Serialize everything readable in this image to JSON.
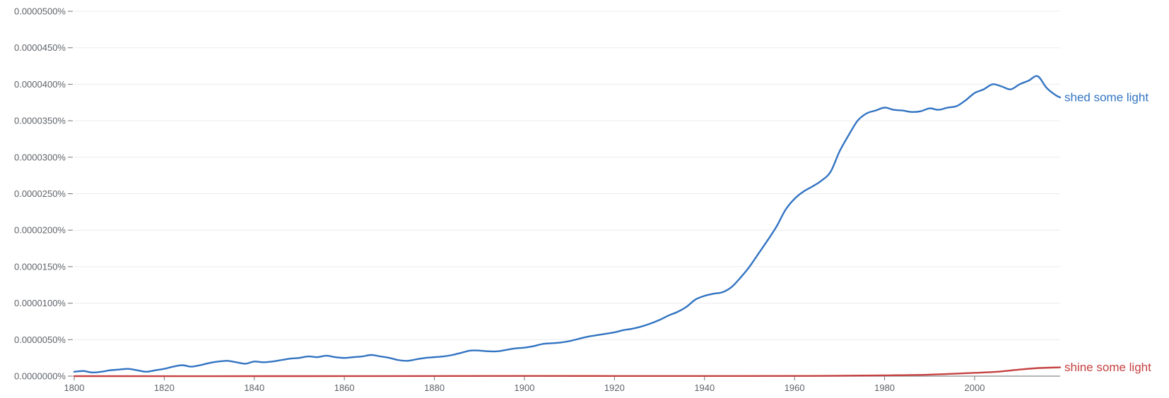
{
  "chart_data": {
    "type": "line",
    "title": "",
    "xlabel": "",
    "ylabel": "",
    "xlim": [
      1800,
      2019
    ],
    "ylim": [
      0,
      5e-05
    ],
    "grid": true,
    "legend": "inline-right",
    "x_ticks": [
      1800,
      1820,
      1840,
      1860,
      1880,
      1900,
      1920,
      1940,
      1960,
      1980,
      2000
    ],
    "x_tick_labels": [
      "1800",
      "1820",
      "1840",
      "1860",
      "1880",
      "1900",
      "1920",
      "1940",
      "1960",
      "1980",
      "2000"
    ],
    "y_ticks": [
      0,
      5e-06,
      1e-05,
      1.5e-05,
      2e-05,
      2.5e-05,
      3e-05,
      3.5e-05,
      4e-05,
      4.5e-05,
      5e-05
    ],
    "y_tick_labels": [
      "0.0000000%",
      "0.0000050%",
      "0.0000100%",
      "0.0000150%",
      "0.0000200%",
      "0.0000250%",
      "0.0000300%",
      "0.0000350%",
      "0.0000400%",
      "0.0000450%",
      "0.0000500%"
    ],
    "series": [
      {
        "name": "shed some light",
        "color": "#3274c2",
        "points": [
          [
            1800,
            6e-07
          ],
          [
            1802,
            7e-07
          ],
          [
            1804,
            5e-07
          ],
          [
            1806,
            6e-07
          ],
          [
            1808,
            8e-07
          ],
          [
            1810,
            9e-07
          ],
          [
            1812,
            1e-06
          ],
          [
            1814,
            8e-07
          ],
          [
            1816,
            6e-07
          ],
          [
            1818,
            8e-07
          ],
          [
            1820,
            1e-06
          ],
          [
            1822,
            1.3e-06
          ],
          [
            1824,
            1.5e-06
          ],
          [
            1826,
            1.3e-06
          ],
          [
            1828,
            1.5e-06
          ],
          [
            1830,
            1.8e-06
          ],
          [
            1832,
            2e-06
          ],
          [
            1834,
            2.1e-06
          ],
          [
            1836,
            1.9e-06
          ],
          [
            1838,
            1.7e-06
          ],
          [
            1840,
            2e-06
          ],
          [
            1842,
            1.9e-06
          ],
          [
            1844,
            2e-06
          ],
          [
            1846,
            2.2e-06
          ],
          [
            1848,
            2.4e-06
          ],
          [
            1850,
            2.5e-06
          ],
          [
            1852,
            2.7e-06
          ],
          [
            1854,
            2.6e-06
          ],
          [
            1856,
            2.8e-06
          ],
          [
            1858,
            2.6e-06
          ],
          [
            1860,
            2.5e-06
          ],
          [
            1862,
            2.6e-06
          ],
          [
            1864,
            2.7e-06
          ],
          [
            1866,
            2.9e-06
          ],
          [
            1868,
            2.7e-06
          ],
          [
            1870,
            2.5e-06
          ],
          [
            1872,
            2.2e-06
          ],
          [
            1874,
            2.1e-06
          ],
          [
            1876,
            2.3e-06
          ],
          [
            1878,
            2.5e-06
          ],
          [
            1880,
            2.6e-06
          ],
          [
            1882,
            2.7e-06
          ],
          [
            1884,
            2.9e-06
          ],
          [
            1886,
            3.2e-06
          ],
          [
            1888,
            3.5e-06
          ],
          [
            1890,
            3.5e-06
          ],
          [
            1892,
            3.4e-06
          ],
          [
            1894,
            3.4e-06
          ],
          [
            1896,
            3.6e-06
          ],
          [
            1898,
            3.8e-06
          ],
          [
            1900,
            3.9e-06
          ],
          [
            1902,
            4.1e-06
          ],
          [
            1904,
            4.4e-06
          ],
          [
            1906,
            4.5e-06
          ],
          [
            1908,
            4.6e-06
          ],
          [
            1910,
            4.8e-06
          ],
          [
            1912,
            5.1e-06
          ],
          [
            1914,
            5.4e-06
          ],
          [
            1916,
            5.6e-06
          ],
          [
            1918,
            5.8e-06
          ],
          [
            1920,
            6e-06
          ],
          [
            1922,
            6.3e-06
          ],
          [
            1924,
            6.5e-06
          ],
          [
            1926,
            6.8e-06
          ],
          [
            1928,
            7.2e-06
          ],
          [
            1930,
            7.7e-06
          ],
          [
            1932,
            8.3e-06
          ],
          [
            1934,
            8.8e-06
          ],
          [
            1936,
            9.5e-06
          ],
          [
            1938,
            1.05e-05
          ],
          [
            1940,
            1.1e-05
          ],
          [
            1942,
            1.13e-05
          ],
          [
            1944,
            1.15e-05
          ],
          [
            1946,
            1.22e-05
          ],
          [
            1948,
            1.35e-05
          ],
          [
            1950,
            1.5e-05
          ],
          [
            1952,
            1.68e-05
          ],
          [
            1954,
            1.86e-05
          ],
          [
            1956,
            2.05e-05
          ],
          [
            1958,
            2.28e-05
          ],
          [
            1960,
            2.43e-05
          ],
          [
            1962,
            2.53e-05
          ],
          [
            1964,
            2.6e-05
          ],
          [
            1966,
            2.68e-05
          ],
          [
            1968,
            2.8e-05
          ],
          [
            1970,
            3.08e-05
          ],
          [
            1972,
            3.3e-05
          ],
          [
            1974,
            3.5e-05
          ],
          [
            1976,
            3.6e-05
          ],
          [
            1978,
            3.64e-05
          ],
          [
            1980,
            3.68e-05
          ],
          [
            1982,
            3.65e-05
          ],
          [
            1984,
            3.64e-05
          ],
          [
            1986,
            3.62e-05
          ],
          [
            1988,
            3.63e-05
          ],
          [
            1990,
            3.67e-05
          ],
          [
            1992,
            3.65e-05
          ],
          [
            1994,
            3.68e-05
          ],
          [
            1996,
            3.7e-05
          ],
          [
            1998,
            3.78e-05
          ],
          [
            2000,
            3.88e-05
          ],
          [
            2002,
            3.93e-05
          ],
          [
            2004,
            4e-05
          ],
          [
            2006,
            3.97e-05
          ],
          [
            2008,
            3.93e-05
          ],
          [
            2010,
            4e-05
          ],
          [
            2012,
            4.05e-05
          ],
          [
            2014,
            4.11e-05
          ],
          [
            2016,
            3.95e-05
          ],
          [
            2018,
            3.85e-05
          ],
          [
            2019,
            3.82e-05
          ]
        ]
      },
      {
        "name": "shine some light",
        "color": "#c64141",
        "points": [
          [
            1800,
            0.0
          ],
          [
            1850,
            0.0
          ],
          [
            1900,
            3e-08
          ],
          [
            1920,
            2e-08
          ],
          [
            1940,
            2e-08
          ],
          [
            1960,
            3e-08
          ],
          [
            1970,
            5e-08
          ],
          [
            1980,
            1e-07
          ],
          [
            1990,
            2e-07
          ],
          [
            2000,
            4.5e-07
          ],
          [
            2005,
            6e-07
          ],
          [
            2010,
            9e-07
          ],
          [
            2014,
            1.1e-06
          ],
          [
            2019,
            1.2e-06
          ]
        ]
      }
    ]
  }
}
